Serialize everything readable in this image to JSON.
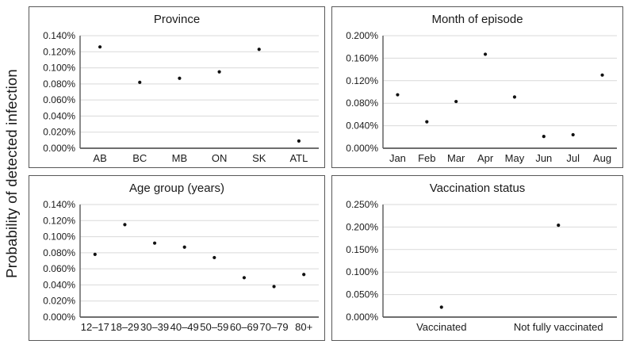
{
  "figure": {
    "ylabel": "Probability of detected infection"
  },
  "colors": {
    "dot": "#111111",
    "gridline": "#d9d9d9",
    "axis": "#595959",
    "panel_border": "#585858",
    "text": "#1a1a1a"
  },
  "chart_data": [
    {
      "type": "scatter",
      "title": "Province",
      "categories": [
        "AB",
        "BC",
        "MB",
        "ON",
        "SK",
        "ATL"
      ],
      "values": [
        0.126,
        0.082,
        0.087,
        0.095,
        0.123,
        0.009
      ],
      "xlabel": "",
      "ylabel": "Probability of detected infection",
      "ylim": [
        0,
        0.14
      ],
      "yticks": [
        "0.000%",
        "0.020%",
        "0.040%",
        "0.060%",
        "0.080%",
        "0.100%",
        "0.120%",
        "0.140%"
      ],
      "grid": "horizontal",
      "legend": "none"
    },
    {
      "type": "scatter",
      "title": "Month of episode",
      "categories": [
        "Jan",
        "Feb",
        "Mar",
        "Apr",
        "May",
        "Jun",
        "Jul",
        "Aug"
      ],
      "values": [
        0.095,
        0.047,
        0.083,
        0.167,
        0.091,
        0.021,
        0.024,
        0.13
      ],
      "xlabel": "",
      "ylabel": "Probability of detected infection",
      "ylim": [
        0,
        0.2
      ],
      "yticks": [
        "0.000%",
        "0.040%",
        "0.080%",
        "0.120%",
        "0.160%",
        "0.200%"
      ],
      "grid": "horizontal",
      "legend": "none"
    },
    {
      "type": "scatter",
      "title": "Age group (years)",
      "categories": [
        "12–17",
        "18–29",
        "30–39",
        "40–49",
        "50–59",
        "60–69",
        "70–79",
        "80+"
      ],
      "values": [
        0.078,
        0.115,
        0.092,
        0.087,
        0.074,
        0.049,
        0.038,
        0.053
      ],
      "xlabel": "",
      "ylabel": "Probability of detected infection",
      "ylim": [
        0,
        0.14
      ],
      "yticks": [
        "0.000%",
        "0.020%",
        "0.040%",
        "0.060%",
        "0.080%",
        "0.100%",
        "0.120%",
        "0.140%"
      ],
      "grid": "horizontal",
      "legend": "none"
    },
    {
      "type": "scatter",
      "title": "Vaccination status",
      "categories": [
        "Vaccinated",
        "Not fully vaccinated"
      ],
      "values": [
        0.022,
        0.204
      ],
      "xlabel": "",
      "ylabel": "Probability of detected infection",
      "ylim": [
        0,
        0.25
      ],
      "yticks": [
        "0.000%",
        "0.050%",
        "0.100%",
        "0.150%",
        "0.200%",
        "0.250%"
      ],
      "grid": "horizontal",
      "legend": "none"
    }
  ]
}
